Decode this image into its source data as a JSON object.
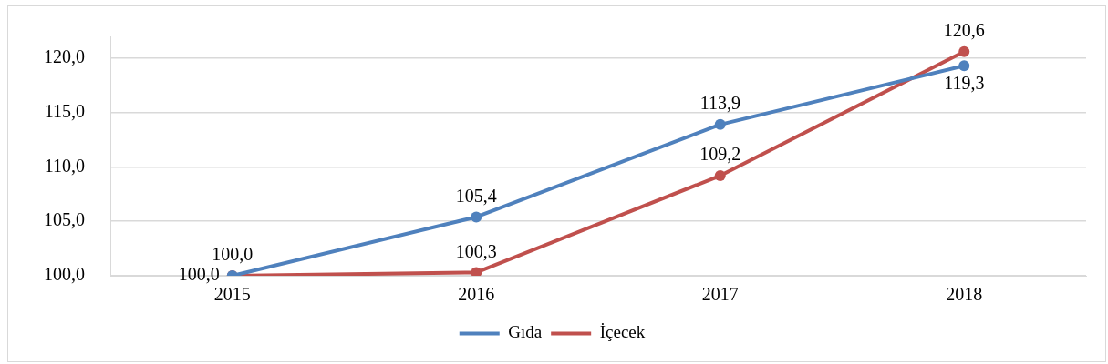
{
  "chart_data": {
    "type": "line",
    "categories": [
      "2015",
      "2016",
      "2017",
      "2018"
    ],
    "series": [
      {
        "name": "Gıda",
        "color": "#4f81bd",
        "values": [
          100.0,
          105.4,
          113.9,
          119.3
        ],
        "value_labels": [
          "100,0",
          "105,4",
          "113,9",
          "119,3"
        ]
      },
      {
        "name": "İçecek",
        "color": "#c0504d",
        "values": [
          100.0,
          100.3,
          109.2,
          120.6
        ],
        "value_labels": [
          "100,0",
          "100,3",
          "109,2",
          "120,6"
        ]
      }
    ],
    "ylim": [
      100,
      122
    ],
    "yticks": [
      {
        "value": 100,
        "label": "100,0"
      },
      {
        "value": 105,
        "label": "105,0"
      },
      {
        "value": 110,
        "label": "110,0"
      },
      {
        "value": 115,
        "label": "115,0"
      },
      {
        "value": 120,
        "label": "120,0"
      }
    ],
    "grid": "y",
    "legend": "bottom",
    "marker": "circle",
    "line_style": "solid"
  }
}
